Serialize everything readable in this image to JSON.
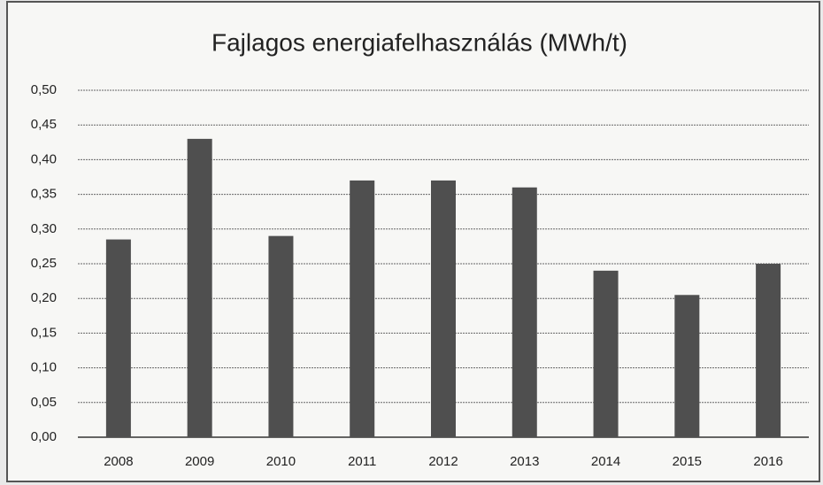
{
  "chart_data": {
    "type": "bar",
    "title": "Fajlagos energiafelhasználás (MWh/t)",
    "categories": [
      "2008",
      "2009",
      "2010",
      "2011",
      "2012",
      "2013",
      "2014",
      "2015",
      "2016"
    ],
    "values": [
      0.285,
      0.43,
      0.29,
      0.37,
      0.37,
      0.36,
      0.24,
      0.205,
      0.25
    ],
    "color": "#4f4f4f",
    "ylim": [
      0,
      0.5
    ],
    "yticks": [
      {
        "value": 0,
        "label": "0,00"
      },
      {
        "value": 0.05,
        "label": "0,05"
      },
      {
        "value": 0.1,
        "label": "0,10"
      },
      {
        "value": 0.15,
        "label": "0,15"
      },
      {
        "value": 0.2,
        "label": "0,20"
      },
      {
        "value": 0.25,
        "label": "0,25"
      },
      {
        "value": 0.3,
        "label": "0,30"
      },
      {
        "value": 0.35,
        "label": "0,35"
      },
      {
        "value": 0.4,
        "label": "0,40"
      },
      {
        "value": 0.45,
        "label": "0,45"
      },
      {
        "value": 0.5,
        "label": "0,50"
      }
    ],
    "grid": true
  }
}
